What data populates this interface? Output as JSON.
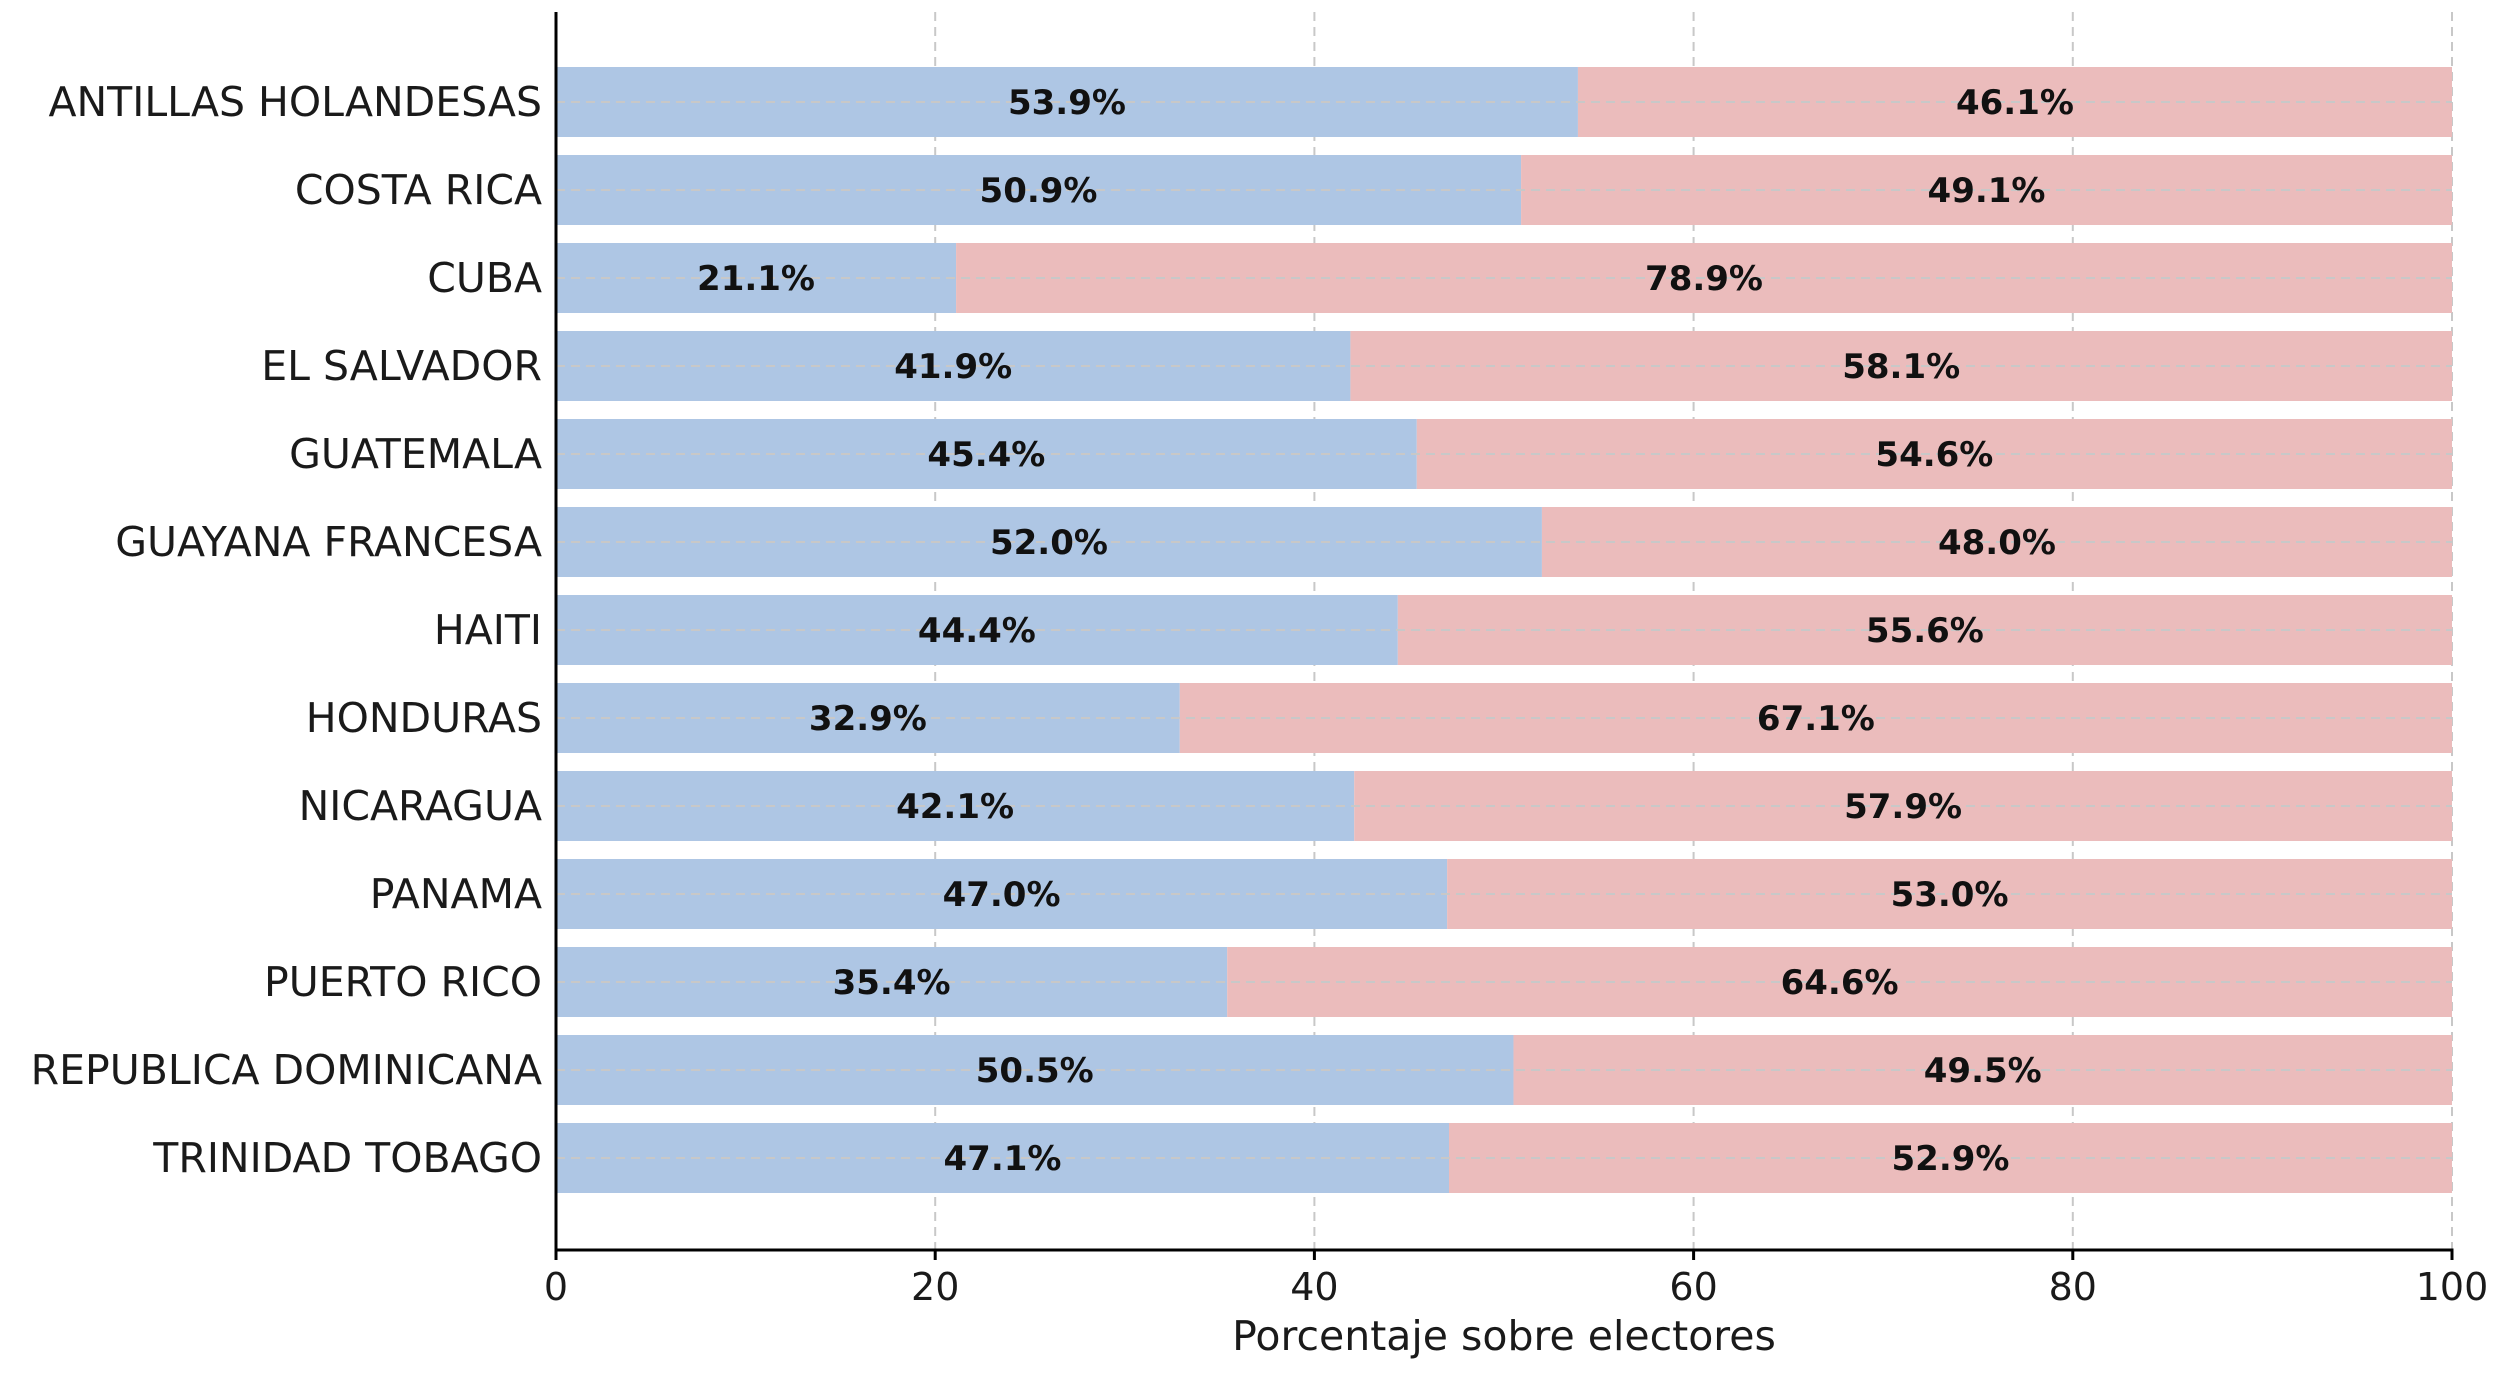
{
  "chart_data": {
    "type": "bar",
    "orientation": "horizontal",
    "stacked": true,
    "categories": [
      "ANTILLAS HOLANDESAS",
      "COSTA RICA",
      "CUBA",
      "EL SALVADOR",
      "GUATEMALA",
      "GUAYANA FRANCESA",
      "HAITI",
      "HONDURAS",
      "NICARAGUA",
      "PANAMA",
      "PUERTO RICO",
      "REPUBLICA DOMINICANA",
      "TRINIDAD TOBAGO"
    ],
    "series": [
      {
        "color": "#aec6e4",
        "values": [
          53.9,
          50.9,
          21.1,
          41.9,
          45.4,
          52.0,
          44.4,
          32.9,
          42.1,
          47.0,
          35.4,
          50.5,
          47.1
        ],
        "labels": [
          "53.9%",
          "50.9%",
          "21.1%",
          "41.9%",
          "45.4%",
          "52.0%",
          "44.4%",
          "32.9%",
          "42.1%",
          "47.0%",
          "35.4%",
          "50.5%",
          "47.1%"
        ]
      },
      {
        "color": "#ebbcbc",
        "values": [
          46.1,
          49.1,
          78.9,
          58.1,
          54.6,
          48.0,
          55.6,
          67.1,
          57.9,
          53.0,
          64.6,
          49.5,
          52.9
        ],
        "labels": [
          "46.1%",
          "49.1%",
          "78.9%",
          "58.1%",
          "54.6%",
          "48.0%",
          "55.6%",
          "67.1%",
          "57.9%",
          "53.0%",
          "64.6%",
          "49.5%",
          "52.9%"
        ]
      }
    ],
    "title": "",
    "xlabel": "Porcentaje sobre electores",
    "ylabel": "",
    "xlim": [
      0,
      100
    ],
    "xticks": [
      "0",
      "20",
      "40",
      "60",
      "80",
      "100"
    ],
    "grid": "x dashed",
    "legend": "none"
  }
}
